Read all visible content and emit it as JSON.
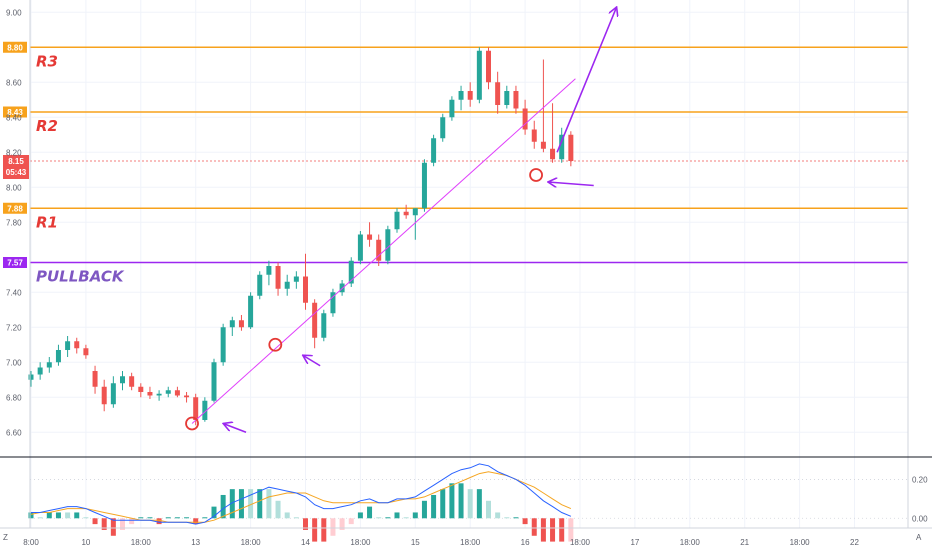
{
  "chart_data": {
    "type": "candlestick",
    "price_axis": {
      "ylim": [
        6.47,
        9.07
      ],
      "ticks": [
        "9.00",
        "8.60",
        "8.40",
        "8.20",
        "8.00",
        "7.80",
        "7.40",
        "7.20",
        "7.00",
        "6.80",
        "6.60"
      ],
      "tick_values": [
        9.0,
        8.6,
        8.4,
        8.2,
        8.0,
        7.8,
        7.4,
        7.2,
        7.0,
        6.8,
        6.6
      ]
    },
    "time_axis": {
      "labels": [
        "8:00",
        "10",
        "18:00",
        "13",
        "18:00",
        "14",
        "18:00",
        "15",
        "18:00",
        "16",
        "18:00",
        "17",
        "18:00",
        "21",
        "18:00",
        "22"
      ],
      "label_bars": [
        0,
        6,
        12,
        18,
        24,
        30,
        36,
        42,
        48,
        54,
        60,
        66,
        72,
        78,
        84,
        90
      ]
    },
    "levels": [
      {
        "value": 8.8,
        "tag": "8.80",
        "name": "R3",
        "color": "#f7a21c",
        "name_color": "#e53935"
      },
      {
        "value": 8.43,
        "tag": "8.43",
        "name": "R2",
        "color": "#f7a21c",
        "name_color": "#e53935"
      },
      {
        "value": 7.88,
        "tag": "7.88",
        "name": "R1",
        "color": "#f7a21c",
        "name_color": "#e53935"
      },
      {
        "value": 7.57,
        "tag": "7.57",
        "name": "PULLBACK",
        "color": "#9c27f0",
        "name_color": "#7e57c2"
      }
    ],
    "current_price": {
      "value": 8.15,
      "tag": "8.15",
      "countdown": "05:43",
      "color": "#ef5350"
    },
    "candles": [
      {
        "o": 6.9,
        "h": 6.95,
        "l": 6.86,
        "c": 6.93
      },
      {
        "o": 6.93,
        "h": 7.0,
        "l": 6.9,
        "c": 6.97
      },
      {
        "o": 6.97,
        "h": 7.03,
        "l": 6.94,
        "c": 7.0
      },
      {
        "o": 7.0,
        "h": 7.1,
        "l": 6.98,
        "c": 7.07
      },
      {
        "o": 7.07,
        "h": 7.15,
        "l": 7.03,
        "c": 7.12
      },
      {
        "o": 7.12,
        "h": 7.14,
        "l": 7.05,
        "c": 7.08
      },
      {
        "o": 7.08,
        "h": 7.1,
        "l": 7.02,
        "c": 7.04
      },
      {
        "o": 6.95,
        "h": 6.98,
        "l": 6.82,
        "c": 6.86
      },
      {
        "o": 6.86,
        "h": 6.9,
        "l": 6.72,
        "c": 6.76
      },
      {
        "o": 6.76,
        "h": 6.92,
        "l": 6.74,
        "c": 6.88
      },
      {
        "o": 6.88,
        "h": 6.95,
        "l": 6.84,
        "c": 6.92
      },
      {
        "o": 6.92,
        "h": 6.94,
        "l": 6.84,
        "c": 6.86
      },
      {
        "o": 6.86,
        "h": 6.88,
        "l": 6.8,
        "c": 6.83
      },
      {
        "o": 6.83,
        "h": 6.86,
        "l": 6.79,
        "c": 6.81
      },
      {
        "o": 6.81,
        "h": 6.84,
        "l": 6.78,
        "c": 6.82
      },
      {
        "o": 6.82,
        "h": 6.86,
        "l": 6.8,
        "c": 6.84
      },
      {
        "o": 6.84,
        "h": 6.86,
        "l": 6.8,
        "c": 6.81
      },
      {
        "o": 6.81,
        "h": 6.83,
        "l": 6.77,
        "c": 6.8
      },
      {
        "o": 6.8,
        "h": 6.82,
        "l": 6.64,
        "c": 6.67
      },
      {
        "o": 6.67,
        "h": 6.8,
        "l": 6.66,
        "c": 6.78
      },
      {
        "o": 6.78,
        "h": 7.02,
        "l": 6.77,
        "c": 7.0
      },
      {
        "o": 7.0,
        "h": 7.22,
        "l": 6.98,
        "c": 7.2
      },
      {
        "o": 7.2,
        "h": 7.26,
        "l": 7.15,
        "c": 7.24
      },
      {
        "o": 7.24,
        "h": 7.27,
        "l": 7.18,
        "c": 7.2
      },
      {
        "o": 7.2,
        "h": 7.4,
        "l": 7.19,
        "c": 7.38
      },
      {
        "o": 7.38,
        "h": 7.52,
        "l": 7.36,
        "c": 7.5
      },
      {
        "o": 7.5,
        "h": 7.58,
        "l": 7.44,
        "c": 7.55
      },
      {
        "o": 7.55,
        "h": 7.57,
        "l": 7.38,
        "c": 7.42
      },
      {
        "o": 7.42,
        "h": 7.5,
        "l": 7.38,
        "c": 7.46
      },
      {
        "o": 7.46,
        "h": 7.52,
        "l": 7.42,
        "c": 7.49
      },
      {
        "o": 7.49,
        "h": 7.62,
        "l": 7.3,
        "c": 7.34
      },
      {
        "o": 7.34,
        "h": 7.36,
        "l": 7.08,
        "c": 7.14
      },
      {
        "o": 7.14,
        "h": 7.3,
        "l": 7.12,
        "c": 7.28
      },
      {
        "o": 7.28,
        "h": 7.42,
        "l": 7.26,
        "c": 7.4
      },
      {
        "o": 7.4,
        "h": 7.47,
        "l": 7.38,
        "c": 7.45
      },
      {
        "o": 7.45,
        "h": 7.6,
        "l": 7.43,
        "c": 7.58
      },
      {
        "o": 7.58,
        "h": 7.75,
        "l": 7.56,
        "c": 7.73
      },
      {
        "o": 7.73,
        "h": 7.8,
        "l": 7.66,
        "c": 7.7
      },
      {
        "o": 7.7,
        "h": 7.73,
        "l": 7.55,
        "c": 7.58
      },
      {
        "o": 7.58,
        "h": 7.78,
        "l": 7.56,
        "c": 7.76
      },
      {
        "o": 7.76,
        "h": 7.88,
        "l": 7.74,
        "c": 7.86
      },
      {
        "o": 7.86,
        "h": 7.9,
        "l": 7.82,
        "c": 7.84
      },
      {
        "o": 7.84,
        "h": 7.88,
        "l": 7.7,
        "c": 7.88
      },
      {
        "o": 7.88,
        "h": 8.16,
        "l": 7.86,
        "c": 8.14
      },
      {
        "o": 8.14,
        "h": 8.3,
        "l": 8.12,
        "c": 8.28
      },
      {
        "o": 8.28,
        "h": 8.42,
        "l": 8.26,
        "c": 8.4
      },
      {
        "o": 8.4,
        "h": 8.52,
        "l": 8.38,
        "c": 8.5
      },
      {
        "o": 8.5,
        "h": 8.58,
        "l": 8.44,
        "c": 8.55
      },
      {
        "o": 8.55,
        "h": 8.6,
        "l": 8.46,
        "c": 8.5
      },
      {
        "o": 8.5,
        "h": 8.8,
        "l": 8.48,
        "c": 8.78
      },
      {
        "o": 8.78,
        "h": 8.8,
        "l": 8.56,
        "c": 8.6
      },
      {
        "o": 8.6,
        "h": 8.66,
        "l": 8.42,
        "c": 8.47
      },
      {
        "o": 8.47,
        "h": 8.58,
        "l": 8.45,
        "c": 8.55
      },
      {
        "o": 8.55,
        "h": 8.58,
        "l": 8.42,
        "c": 8.45
      },
      {
        "o": 8.45,
        "h": 8.5,
        "l": 8.3,
        "c": 8.33
      },
      {
        "o": 8.33,
        "h": 8.38,
        "l": 8.22,
        "c": 8.26
      },
      {
        "o": 8.26,
        "h": 8.73,
        "l": 8.2,
        "c": 8.22
      },
      {
        "o": 8.22,
        "h": 8.48,
        "l": 8.14,
        "c": 8.16
      },
      {
        "o": 8.16,
        "h": 8.34,
        "l": 8.14,
        "c": 8.3
      },
      {
        "o": 8.3,
        "h": 8.32,
        "l": 8.12,
        "c": 8.15
      }
    ],
    "macd_axis": {
      "ylim": [
        -0.05,
        0.3
      ],
      "ticks": [
        "0.20",
        "0.00"
      ],
      "tick_values": [
        0.2,
        0.0
      ]
    },
    "macd": {
      "macd_line": [
        0.03,
        0.03,
        0.04,
        0.05,
        0.06,
        0.06,
        0.05,
        0.03,
        0.01,
        -0.01,
        -0.01,
        -0.01,
        -0.01,
        -0.01,
        -0.02,
        -0.02,
        -0.02,
        -0.02,
        -0.03,
        -0.02,
        0.01,
        0.05,
        0.08,
        0.1,
        0.12,
        0.14,
        0.16,
        0.15,
        0.14,
        0.13,
        0.11,
        0.07,
        0.05,
        0.05,
        0.06,
        0.07,
        0.09,
        0.1,
        0.08,
        0.08,
        0.1,
        0.1,
        0.11,
        0.14,
        0.17,
        0.2,
        0.23,
        0.25,
        0.26,
        0.28,
        0.27,
        0.24,
        0.22,
        0.2,
        0.17,
        0.13,
        0.09,
        0.06,
        0.03,
        0.01
      ],
      "signal_line": [
        0.02,
        0.03,
        0.03,
        0.04,
        0.05,
        0.05,
        0.05,
        0.04,
        0.03,
        0.02,
        0.01,
        0.0,
        -0.01,
        -0.01,
        -0.01,
        -0.02,
        -0.02,
        -0.02,
        -0.02,
        -0.02,
        -0.01,
        0.01,
        0.03,
        0.05,
        0.07,
        0.09,
        0.11,
        0.12,
        0.13,
        0.13,
        0.13,
        0.11,
        0.09,
        0.08,
        0.08,
        0.08,
        0.08,
        0.08,
        0.08,
        0.08,
        0.09,
        0.1,
        0.1,
        0.11,
        0.13,
        0.15,
        0.17,
        0.19,
        0.21,
        0.23,
        0.24,
        0.23,
        0.22,
        0.2,
        0.18,
        0.16,
        0.13,
        0.1,
        0.07,
        0.05
      ]
    },
    "annotations": {
      "trendline": [
        {
          "bar": 17.6,
          "price": 6.65
        },
        {
          "bar": 59.5,
          "price": 8.62
        }
      ],
      "circles": [
        {
          "bar": 17.6,
          "price": 6.65
        },
        {
          "bar": 26.7,
          "price": 7.1
        },
        {
          "bar": 55.2,
          "price": 8.07
        }
      ],
      "arrows": [
        {
          "from": {
            "bar": 23.5,
            "price": 6.6
          },
          "to": {
            "bar": 21.0,
            "price": 6.65
          }
        },
        {
          "from": {
            "bar": 31.6,
            "price": 6.98
          },
          "to": {
            "bar": 29.7,
            "price": 7.04
          }
        },
        {
          "from": {
            "bar": 61.5,
            "price": 8.01
          },
          "to": {
            "bar": 56.5,
            "price": 8.03
          }
        },
        {
          "from": {
            "bar": 57.5,
            "price": 8.2
          },
          "to": {
            "bar": 64.0,
            "price": 9.03
          }
        }
      ]
    },
    "colors": {
      "up": "#26a69a",
      "down": "#ef5350",
      "macd": "#2962ff",
      "signal": "#f5a623",
      "trend": "#e040fb",
      "arrow": "#9c27f0",
      "circle": "#e53935"
    }
  },
  "corner_labels": {
    "z": "Z",
    "a": "A"
  }
}
